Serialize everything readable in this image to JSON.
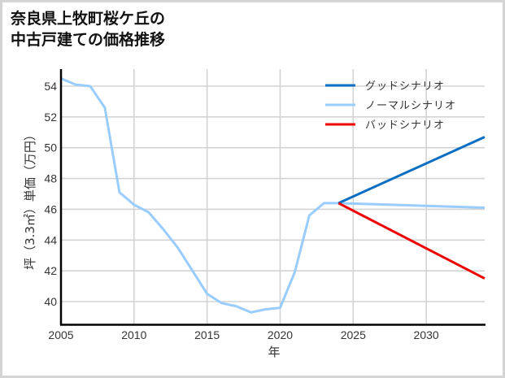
{
  "title": {
    "line1": "奈良県上牧町桜ケ丘の",
    "line2": "中古戸建ての価格推移"
  },
  "chart_data": {
    "type": "line",
    "title": "奈良県上牧町桜ケ丘の中古戸建ての価格推移",
    "xlabel": "年",
    "ylabel": "坪（3.3㎡）単価（万円）",
    "xlim": [
      2005,
      2034
    ],
    "ylim": [
      38.5,
      55.0
    ],
    "xticks": [
      2005,
      2010,
      2015,
      2020,
      2025,
      2030
    ],
    "yticks": [
      40,
      42,
      44,
      46,
      48,
      50,
      52,
      54
    ],
    "grid": true,
    "legend_position": "upper right",
    "series": [
      {
        "name": "グッドシナリオ",
        "color": "#0a6fc2",
        "x": [
          2024,
          2034
        ],
        "values": [
          46.4,
          50.7
        ]
      },
      {
        "name": "ノーマルシナリオ",
        "color": "#99ccff",
        "x": [
          2005,
          2006,
          2007,
          2008,
          2009,
          2010,
          2011,
          2012,
          2013,
          2014,
          2015,
          2016,
          2017,
          2018,
          2019,
          2020,
          2021,
          2022,
          2023,
          2024,
          2034
        ],
        "values": [
          54.5,
          54.1,
          54.0,
          52.6,
          47.1,
          46.3,
          45.8,
          44.7,
          43.5,
          42.0,
          40.5,
          39.9,
          39.7,
          39.3,
          39.5,
          39.6,
          41.9,
          45.6,
          46.4,
          46.4,
          46.1
        ]
      },
      {
        "name": "バッドシナリオ",
        "color": "#ee0000",
        "x": [
          2024,
          2034
        ],
        "values": [
          46.4,
          41.5
        ]
      }
    ]
  }
}
